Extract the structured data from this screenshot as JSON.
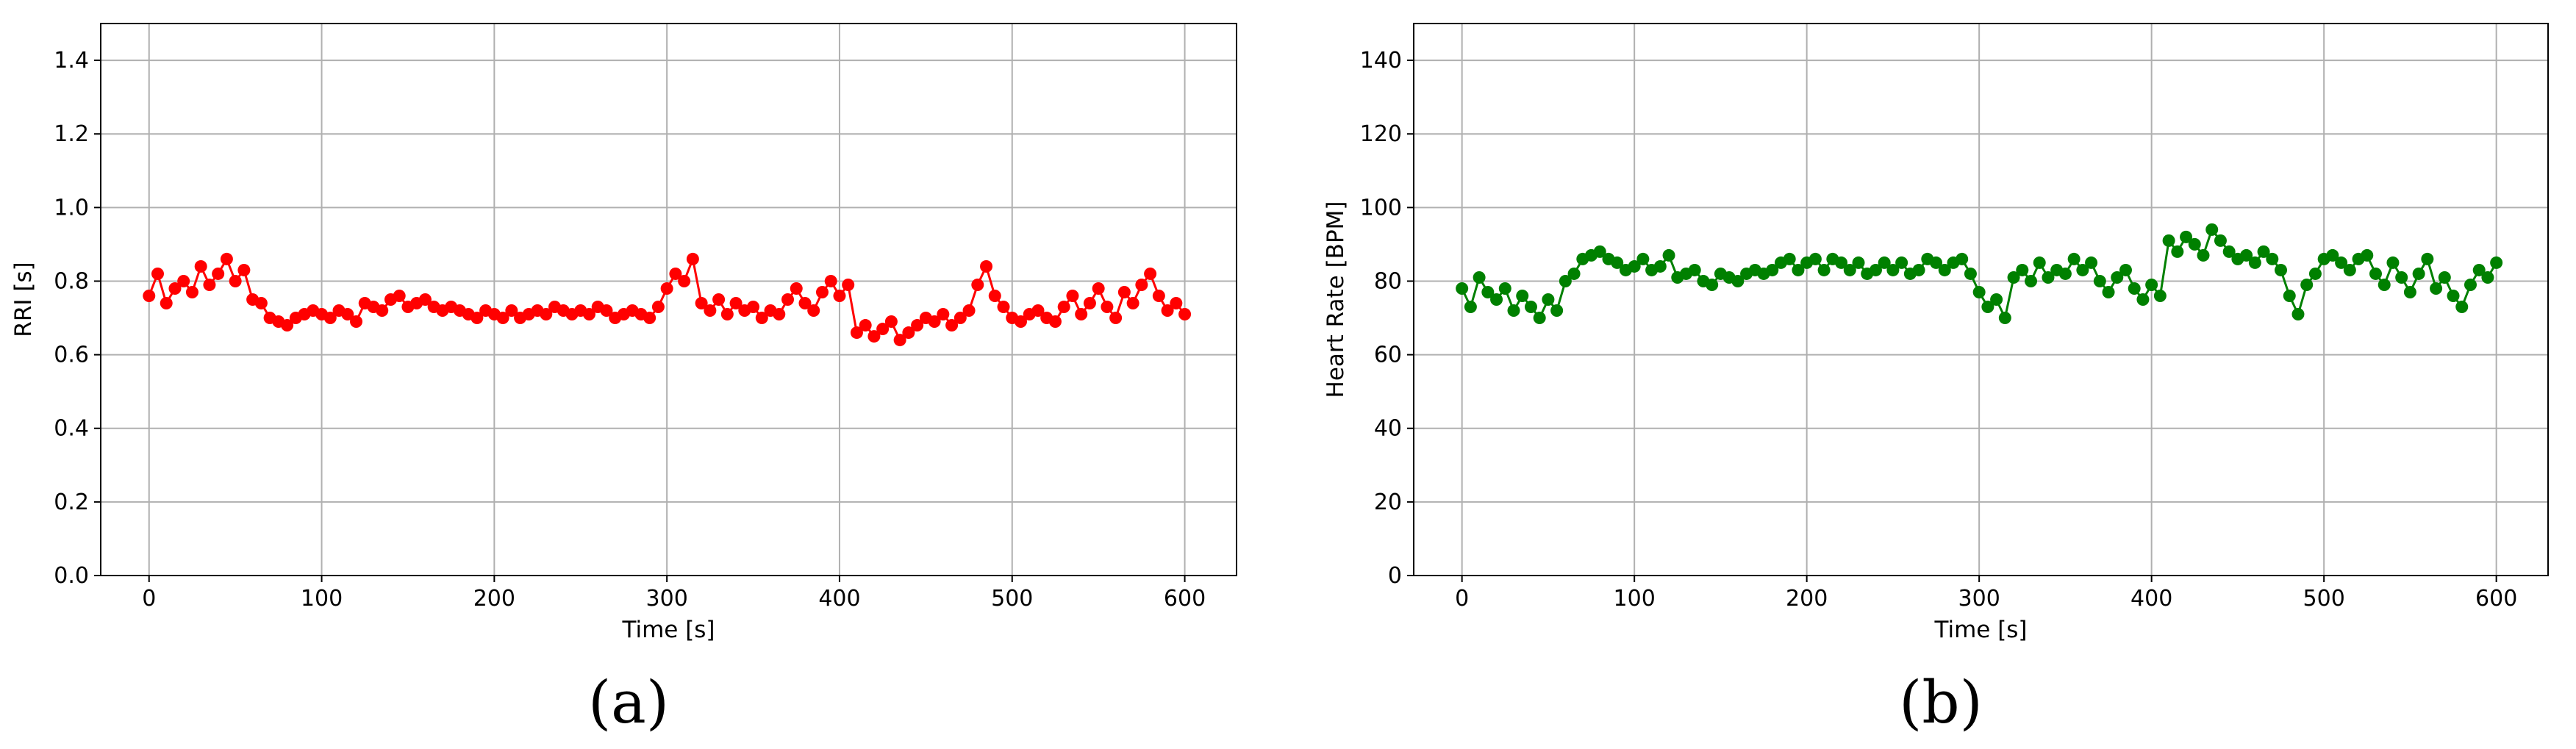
{
  "chart_data": [
    {
      "type": "line",
      "panel_label": "(a)",
      "xlabel": "Time [s]",
      "ylabel": "RRI [s]",
      "xlim": [
        -28,
        630
      ],
      "ylim": [
        0.0,
        1.5
      ],
      "xticks": [
        0,
        100,
        200,
        300,
        400,
        500,
        600
      ],
      "xtick_labels": [
        "0",
        "100",
        "200",
        "300",
        "400",
        "500",
        "600"
      ],
      "yticks": [
        0.0,
        0.2,
        0.4,
        0.6,
        0.8,
        1.0,
        1.2,
        1.4
      ],
      "ytick_labels": [
        "0.0",
        "0.2",
        "0.4",
        "0.6",
        "0.8",
        "1.0",
        "1.2",
        "1.4"
      ],
      "grid": true,
      "markers": true,
      "series": [
        {
          "color": "#ff0000",
          "x": [
            0,
            5,
            10,
            15,
            20,
            25,
            30,
            35,
            40,
            45,
            50,
            55,
            60,
            65,
            70,
            75,
            80,
            85,
            90,
            95,
            100,
            105,
            110,
            115,
            120,
            125,
            130,
            135,
            140,
            145,
            150,
            155,
            160,
            165,
            170,
            175,
            180,
            185,
            190,
            195,
            200,
            205,
            210,
            215,
            220,
            225,
            230,
            235,
            240,
            245,
            250,
            255,
            260,
            265,
            270,
            275,
            280,
            285,
            290,
            295,
            300,
            305,
            310,
            315,
            320,
            325,
            330,
            335,
            340,
            345,
            350,
            355,
            360,
            365,
            370,
            375,
            380,
            385,
            390,
            395,
            400,
            405,
            410,
            415,
            420,
            425,
            430,
            435,
            440,
            445,
            450,
            455,
            460,
            465,
            470,
            475,
            480,
            485,
            490,
            495,
            500,
            505,
            510,
            515,
            520,
            525,
            530,
            535,
            540,
            545,
            550,
            555,
            560,
            565,
            570,
            575,
            580,
            585,
            590,
            595,
            600
          ],
          "y": [
            0.76,
            0.82,
            0.74,
            0.78,
            0.8,
            0.77,
            0.84,
            0.79,
            0.82,
            0.86,
            0.8,
            0.83,
            0.75,
            0.74,
            0.7,
            0.69,
            0.68,
            0.7,
            0.71,
            0.72,
            0.71,
            0.7,
            0.72,
            0.71,
            0.69,
            0.74,
            0.73,
            0.72,
            0.75,
            0.76,
            0.73,
            0.74,
            0.75,
            0.73,
            0.72,
            0.73,
            0.72,
            0.71,
            0.7,
            0.72,
            0.71,
            0.7,
            0.72,
            0.7,
            0.71,
            0.72,
            0.71,
            0.73,
            0.72,
            0.71,
            0.72,
            0.71,
            0.73,
            0.72,
            0.7,
            0.71,
            0.72,
            0.71,
            0.7,
            0.73,
            0.78,
            0.82,
            0.8,
            0.86,
            0.74,
            0.72,
            0.75,
            0.71,
            0.74,
            0.72,
            0.73,
            0.7,
            0.72,
            0.71,
            0.75,
            0.78,
            0.74,
            0.72,
            0.77,
            0.8,
            0.76,
            0.79,
            0.66,
            0.68,
            0.65,
            0.67,
            0.69,
            0.64,
            0.66,
            0.68,
            0.7,
            0.69,
            0.71,
            0.68,
            0.7,
            0.72,
            0.79,
            0.84,
            0.76,
            0.73,
            0.7,
            0.69,
            0.71,
            0.72,
            0.7,
            0.69,
            0.73,
            0.76,
            0.71,
            0.74,
            0.78,
            0.73,
            0.7,
            0.77,
            0.74,
            0.79,
            0.82,
            0.76,
            0.72,
            0.74,
            0.71
          ]
        }
      ]
    },
    {
      "type": "line",
      "panel_label": "(b)",
      "xlabel": "Time [s]",
      "ylabel": "Heart Rate [BPM]",
      "xlim": [
        -28,
        630
      ],
      "ylim": [
        0,
        150
      ],
      "xticks": [
        0,
        100,
        200,
        300,
        400,
        500,
        600
      ],
      "xtick_labels": [
        "0",
        "100",
        "200",
        "300",
        "400",
        "500",
        "600"
      ],
      "yticks": [
        0,
        20,
        40,
        60,
        80,
        100,
        120,
        140
      ],
      "ytick_labels": [
        "0",
        "20",
        "40",
        "60",
        "80",
        "100",
        "120",
        "140"
      ],
      "grid": true,
      "markers": true,
      "series": [
        {
          "color": "#008000",
          "x": [
            0,
            5,
            10,
            15,
            20,
            25,
            30,
            35,
            40,
            45,
            50,
            55,
            60,
            65,
            70,
            75,
            80,
            85,
            90,
            95,
            100,
            105,
            110,
            115,
            120,
            125,
            130,
            135,
            140,
            145,
            150,
            155,
            160,
            165,
            170,
            175,
            180,
            185,
            190,
            195,
            200,
            205,
            210,
            215,
            220,
            225,
            230,
            235,
            240,
            245,
            250,
            255,
            260,
            265,
            270,
            275,
            280,
            285,
            290,
            295,
            300,
            305,
            310,
            315,
            320,
            325,
            330,
            335,
            340,
            345,
            350,
            355,
            360,
            365,
            370,
            375,
            380,
            385,
            390,
            395,
            400,
            405,
            410,
            415,
            420,
            425,
            430,
            435,
            440,
            445,
            450,
            455,
            460,
            465,
            470,
            475,
            480,
            485,
            490,
            495,
            500,
            505,
            510,
            515,
            520,
            525,
            530,
            535,
            540,
            545,
            550,
            555,
            560,
            565,
            570,
            575,
            580,
            585,
            590,
            595,
            600
          ],
          "y": [
            78,
            73,
            81,
            77,
            75,
            78,
            72,
            76,
            73,
            70,
            75,
            72,
            80,
            82,
            86,
            87,
            88,
            86,
            85,
            83,
            84,
            86,
            83,
            84,
            87,
            81,
            82,
            83,
            80,
            79,
            82,
            81,
            80,
            82,
            83,
            82,
            83,
            85,
            86,
            83,
            85,
            86,
            83,
            86,
            85,
            83,
            85,
            82,
            83,
            85,
            83,
            85,
            82,
            83,
            86,
            85,
            83,
            85,
            86,
            82,
            77,
            73,
            75,
            70,
            81,
            83,
            80,
            85,
            81,
            83,
            82,
            86,
            83,
            85,
            80,
            77,
            81,
            83,
            78,
            75,
            79,
            76,
            91,
            88,
            92,
            90,
            87,
            94,
            91,
            88,
            86,
            87,
            85,
            88,
            86,
            83,
            76,
            71,
            79,
            82,
            86,
            87,
            85,
            83,
            86,
            87,
            82,
            79,
            85,
            81,
            77,
            82,
            86,
            78,
            81,
            76,
            73,
            79,
            83,
            81,
            85
          ]
        }
      ]
    }
  ]
}
